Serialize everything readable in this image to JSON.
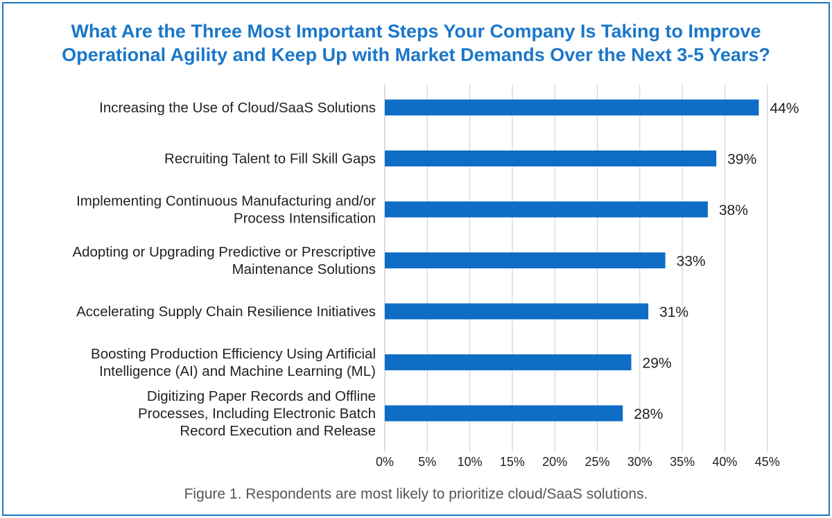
{
  "title_lines": [
    "What Are the Three Most Important Steps Your Company Is Taking to Improve",
    "Operational Agility and Keep Up with Market Demands Over the Next 3-5 Years?"
  ],
  "caption": "Figure 1. Respondents are most likely to prioritize cloud/SaaS solutions.",
  "colors": {
    "bar": "#0f6dc6",
    "title": "#1a77c9",
    "frame": "#1a77c9",
    "grid": "#cccccc"
  },
  "chart_data": {
    "type": "bar",
    "orientation": "horizontal",
    "categories": [
      [
        "Increasing the Use of Cloud/SaaS Solutions"
      ],
      [
        "Recruiting Talent to Fill Skill Gaps"
      ],
      [
        "Implementing Continuous Manufacturing and/or",
        "Process Intensification"
      ],
      [
        "Adopting or Upgrading Predictive or Prescriptive",
        "Maintenance Solutions"
      ],
      [
        "Accelerating Supply Chain Resilience Initiatives"
      ],
      [
        "Boosting Production Efficiency Using Artificial",
        "Intelligence (AI) and Machine Learning (ML)"
      ],
      [
        "Digitizing Paper Records and Offline",
        "Processes, Including Electronic Batch",
        "Record Execution and Release"
      ]
    ],
    "values": [
      44,
      39,
      38,
      33,
      31,
      29,
      28
    ],
    "value_labels": [
      "44%",
      "39%",
      "38%",
      "33%",
      "31%",
      "29%",
      "28%"
    ],
    "xlim": [
      0,
      45
    ],
    "ticks": [
      0,
      5,
      10,
      15,
      20,
      25,
      30,
      35,
      40,
      45
    ],
    "tick_labels": [
      "0%",
      "5%",
      "10%",
      "15%",
      "20%",
      "25%",
      "30%",
      "35%",
      "40%",
      "45%"
    ],
    "grid": true
  }
}
